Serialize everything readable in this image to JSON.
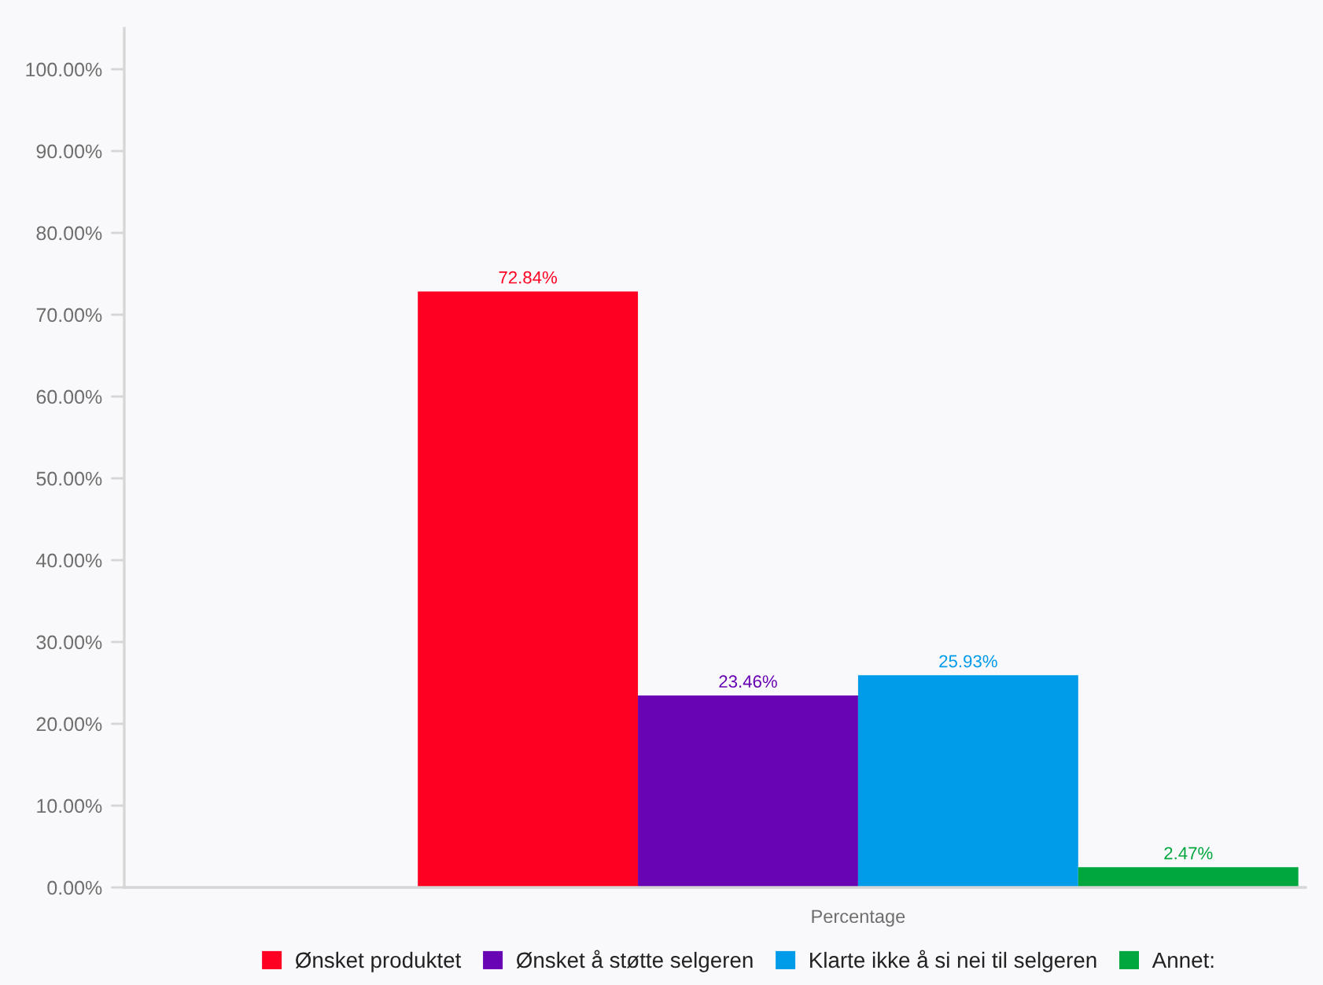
{
  "chart_data": {
    "type": "bar",
    "categories": [
      "Percentage"
    ],
    "series": [
      {
        "name": "Ønsket produktet",
        "color": "#fe0022",
        "values": [
          72.84
        ],
        "value_labels": [
          "72.84%"
        ]
      },
      {
        "name": "Ønsket å støtte selgeren",
        "color": "#6804b4",
        "values": [
          23.46
        ],
        "value_labels": [
          "23.46%"
        ]
      },
      {
        "name": "Klarte ikke å si nei til selgeren",
        "color": "#009be9",
        "values": [
          25.93
        ],
        "value_labels": [
          "25.93%"
        ]
      },
      {
        "name": "Annet:",
        "color": "#00a63e",
        "values": [
          2.47
        ],
        "value_labels": [
          "2.47%"
        ]
      }
    ],
    "ylim": [
      0,
      105
    ],
    "yticks": [
      {
        "value": 0,
        "label": "0.00%"
      },
      {
        "value": 10,
        "label": "10.00%"
      },
      {
        "value": 20,
        "label": "20.00%"
      },
      {
        "value": 30,
        "label": "30.00%"
      },
      {
        "value": 40,
        "label": "40.00%"
      },
      {
        "value": 50,
        "label": "50.00%"
      },
      {
        "value": 60,
        "label": "60.00%"
      },
      {
        "value": 70,
        "label": "70.00%"
      },
      {
        "value": 80,
        "label": "80.00%"
      },
      {
        "value": 90,
        "label": "90.00%"
      },
      {
        "value": 100,
        "label": "100.00%"
      }
    ],
    "legend": "bottom",
    "grid": false
  }
}
